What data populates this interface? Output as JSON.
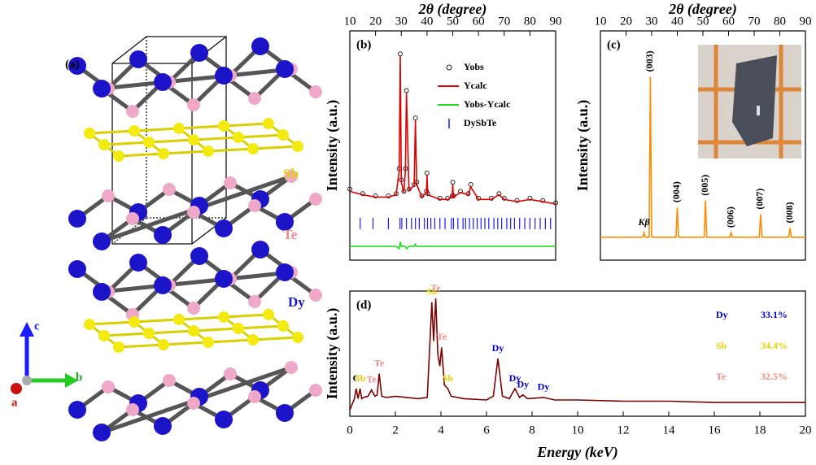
{
  "structure": {
    "panel_label": "(a)",
    "elements": [
      "Sb",
      "Te",
      "Dy"
    ],
    "axes": [
      "a",
      "b",
      "c"
    ]
  },
  "chart_data": [
    {
      "type": "line",
      "panel_label": "(b)",
      "xlabel": "2θ (degree)",
      "ylabel": "Intensity (a.u.)",
      "xlim": [
        10,
        90
      ],
      "xticks": [
        10,
        20,
        30,
        40,
        50,
        60,
        70,
        80,
        90
      ],
      "ylim": [
        0,
        100
      ],
      "legend": "upper right",
      "x": [
        10,
        15,
        20,
        25,
        28,
        29.2,
        29.6,
        30,
        31,
        31.6,
        32,
        33,
        35,
        35.5,
        36,
        38,
        39.8,
        40,
        40.3,
        45,
        48,
        49.8,
        50,
        50.3,
        53,
        56,
        57,
        60,
        65,
        68,
        70,
        75,
        80,
        85,
        90
      ],
      "series": [
        {
          "name": "Yobs",
          "color": "#222222",
          "style": "markers",
          "values": [
            31,
            29,
            28,
            28,
            29,
            40,
            90,
            35,
            30,
            40,
            74,
            31,
            33,
            62,
            34,
            28,
            30,
            38,
            29,
            27,
            27,
            28,
            34,
            28,
            30,
            29,
            33,
            27,
            27,
            29,
            27,
            26,
            27,
            26,
            25
          ]
        },
        {
          "name": "Ycalc",
          "color": "#e00000",
          "style": "line",
          "values": [
            30,
            28.5,
            27.5,
            27.5,
            28.5,
            39,
            89,
            34,
            29.5,
            39,
            73,
            30.5,
            32.5,
            61,
            33,
            27.5,
            29.5,
            37,
            28.5,
            26.5,
            26.5,
            27.5,
            33,
            27.5,
            29.5,
            28.5,
            32,
            26.5,
            26.5,
            28.5,
            26.5,
            25.5,
            26.5,
            25.5,
            24.5
          ]
        },
        {
          "name": "Yobs-Ycalc",
          "color": "#22dd22",
          "style": "line",
          "values": [
            6,
            6,
            6,
            6,
            6,
            5,
            8,
            6,
            6,
            6,
            5,
            6,
            6,
            7,
            6,
            6,
            6,
            6,
            6,
            6,
            6,
            6,
            6,
            6,
            6,
            6,
            6,
            6,
            6,
            6,
            6,
            6,
            6,
            6,
            6
          ]
        },
        {
          "name": "DySbTe",
          "color": "#1a1aff",
          "style": "ticks",
          "x": [
            14,
            19,
            25,
            29.5,
            30.2,
            32,
            34,
            35.5,
            37,
            39,
            40.2,
            41.5,
            43,
            45,
            47,
            49.5,
            50.3,
            52,
            54,
            55,
            56.5,
            58,
            59.5,
            61,
            62.5,
            64,
            66,
            67.5,
            69,
            71,
            72.5,
            74,
            76,
            78,
            80,
            82,
            84,
            86,
            88
          ],
          "values": [
            16,
            16,
            16,
            16,
            16,
            16,
            16,
            16,
            16,
            16,
            16,
            16,
            16,
            16,
            16,
            16,
            16,
            16,
            16,
            16,
            16,
            16,
            16,
            16,
            16,
            16,
            16,
            16,
            16,
            16,
            16,
            16,
            16,
            16,
            16,
            16,
            16,
            16,
            16
          ]
        }
      ]
    },
    {
      "type": "line",
      "panel_label": "(c)",
      "xlabel": "2θ (degree)",
      "ylabel": "Intensity (a.u.)",
      "xlim": [
        10,
        90
      ],
      "xticks": [
        10,
        20,
        30,
        40,
        50,
        60,
        70,
        80,
        90
      ],
      "ylim": [
        0,
        100
      ],
      "x": [
        10,
        20,
        26.5,
        27,
        27.5,
        29,
        29.5,
        30,
        35,
        39.5,
        40,
        40.5,
        50.5,
        51,
        51.5,
        60.5,
        61,
        61.5,
        72,
        72.5,
        73,
        83.5,
        84,
        84.5,
        90
      ],
      "series": [
        {
          "color": "#ff8c00",
          "style": "line",
          "values": [
            10,
            10,
            10,
            12,
            10,
            10,
            80,
            10,
            10,
            10,
            23,
            10,
            10,
            26,
            10,
            10,
            12,
            10,
            10,
            20,
            10,
            10,
            14,
            10,
            10
          ]
        }
      ],
      "annotations": [
        {
          "text": "Kβ",
          "x": 27
        },
        {
          "text": "(003)",
          "x": 29.5
        },
        {
          "text": "(004)",
          "x": 40
        },
        {
          "text": "(005)",
          "x": 51
        },
        {
          "text": "(006)",
          "x": 61
        },
        {
          "text": "(007)",
          "x": 72.5
        },
        {
          "text": "(008)",
          "x": 84
        }
      ]
    },
    {
      "type": "line",
      "panel_label": "(d)",
      "xlabel": "Energy (keV)",
      "ylabel": "Intensity (a.u.)",
      "xlim": [
        0,
        20
      ],
      "xticks": [
        0,
        2,
        4,
        6,
        8,
        10,
        12,
        14,
        16,
        18,
        20
      ],
      "ylim": [
        0,
        100
      ],
      "x": [
        0,
        0.2,
        0.28,
        0.36,
        0.45,
        0.52,
        0.6,
        0.8,
        0.95,
        1.1,
        1.2,
        1.29,
        1.4,
        1.6,
        2,
        2.5,
        3,
        3.4,
        3.6,
        3.68,
        3.77,
        3.86,
        3.95,
        4.03,
        4.15,
        4.3,
        4.45,
        5,
        6,
        6.3,
        6.5,
        6.7,
        7,
        7.25,
        7.45,
        7.6,
        7.8,
        8.5,
        9,
        10,
        12,
        14,
        16,
        18,
        20
      ],
      "series": [
        {
          "color": "#7b0000",
          "style": "line",
          "values": [
            5,
            14,
            22,
            14,
            22,
            14,
            15,
            16,
            21,
            16,
            17,
            34,
            16,
            15,
            16,
            15,
            14,
            15,
            91,
            60,
            94,
            50,
            40,
            55,
            25,
            22,
            16,
            14,
            13,
            16,
            46,
            16,
            14,
            22,
            15,
            17,
            14,
            15,
            13,
            13,
            12,
            12,
            11,
            11,
            11
          ]
        }
      ],
      "annotations": [
        {
          "text": "C",
          "x": 0.28,
          "color": "#000000"
        },
        {
          "text": "Sb",
          "x": 0.45,
          "color": "#e6d200"
        },
        {
          "text": "Te",
          "x": 0.95,
          "color": "#f08c8c"
        },
        {
          "text": "Te",
          "x": 1.29,
          "color": "#f08c8c"
        },
        {
          "text": "Sb",
          "x": 3.6,
          "color": "#e6d200"
        },
        {
          "text": "Te",
          "x": 3.77,
          "color": "#f08c8c"
        },
        {
          "text": "Te",
          "x": 4.03,
          "color": "#f08c8c"
        },
        {
          "text": "Sb",
          "x": 4.3,
          "color": "#e6d200"
        },
        {
          "text": "Dy",
          "x": 6.5,
          "color": "#0000cc"
        },
        {
          "text": "Dy",
          "x": 7.25,
          "color": "#0000cc"
        },
        {
          "text": "Dy",
          "x": 7.6,
          "color": "#0000cc"
        },
        {
          "text": "Dy",
          "x": 8.5,
          "color": "#0000cc"
        }
      ],
      "composition": {
        "elements": [
          "Dy",
          "Sb",
          "Te"
        ],
        "values": [
          33.1,
          34.4,
          32.5
        ],
        "value_labels": [
          "33.1%",
          "34.4%",
          "32.5%"
        ],
        "colors": [
          "#0000cc",
          "#e6d200",
          "#f08c8c"
        ]
      }
    }
  ]
}
